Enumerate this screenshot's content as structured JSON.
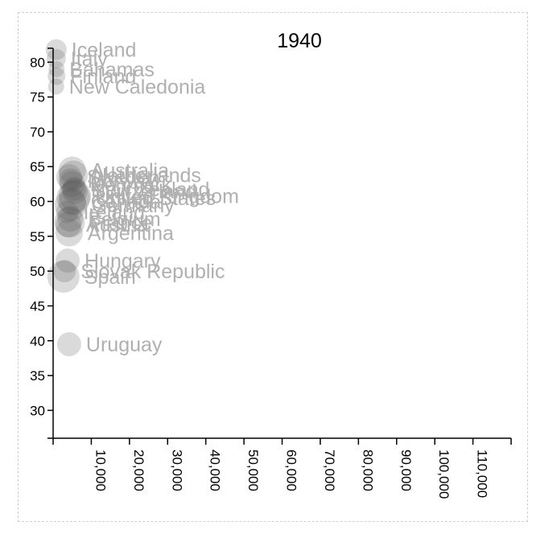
{
  "chart_data": {
    "type": "scatter",
    "title": "1940",
    "xlabel": "",
    "ylabel": "",
    "xlim": [
      0,
      120000
    ],
    "ylim": [
      26,
      82
    ],
    "x_ticks": [
      10000,
      20000,
      30000,
      40000,
      50000,
      60000,
      70000,
      80000,
      90000,
      100000,
      110000
    ],
    "x_tick_labels": [
      "10,000",
      "20,000",
      "30,000",
      "40,000",
      "50,000",
      "60,000",
      "70,000",
      "80,000",
      "90,000",
      "100,000",
      "110,000"
    ],
    "y_ticks": [
      30,
      35,
      40,
      45,
      50,
      55,
      60,
      65,
      70,
      75,
      80
    ],
    "y_tick_labels": [
      "30",
      "35",
      "40",
      "45",
      "50",
      "55",
      "60",
      "65",
      "70",
      "75",
      "80"
    ],
    "points": [
      {
        "label": "Iceland",
        "x": 800,
        "y": 81.8,
        "r": 13
      },
      {
        "label": "Italy",
        "x": 800,
        "y": 80.5,
        "r": 12
      },
      {
        "label": "Bahamas",
        "x": 900,
        "y": 79.0,
        "r": 10
      },
      {
        "label": "Finland",
        "x": 900,
        "y": 78.0,
        "r": 11
      },
      {
        "label": "New Caledonia",
        "x": 800,
        "y": 76.5,
        "r": 10
      },
      {
        "label": "Australia",
        "x": 5000,
        "y": 64.5,
        "r": 17
      },
      {
        "label": "Netherlands",
        "x": 5300,
        "y": 63.8,
        "r": 18
      },
      {
        "label": "Sweden",
        "x": 4200,
        "y": 63.5,
        "r": 16
      },
      {
        "label": "Norway",
        "x": 4600,
        "y": 63.0,
        "r": 15
      },
      {
        "label": "Denmark",
        "x": 5000,
        "y": 62.5,
        "r": 16
      },
      {
        "label": "New Zealand",
        "x": 5500,
        "y": 61.8,
        "r": 15
      },
      {
        "label": "Switzerland",
        "x": 5700,
        "y": 61.5,
        "r": 16
      },
      {
        "label": "United Kingdom",
        "x": 5700,
        "y": 60.8,
        "r": 20
      },
      {
        "label": "United States",
        "x": 5300,
        "y": 60.5,
        "r": 21
      },
      {
        "label": "Canada",
        "x": 5000,
        "y": 60.0,
        "r": 17
      },
      {
        "label": "Germany",
        "x": 4600,
        "y": 59.5,
        "r": 20
      },
      {
        "label": "Ireland",
        "x": 3700,
        "y": 58.5,
        "r": 14
      },
      {
        "label": "Belgium",
        "x": 4500,
        "y": 57.5,
        "r": 16
      },
      {
        "label": "France",
        "x": 4300,
        "y": 57.0,
        "r": 19
      },
      {
        "label": "Austria",
        "x": 4000,
        "y": 56.7,
        "r": 16
      },
      {
        "label": "Argentina",
        "x": 4200,
        "y": 55.5,
        "r": 17
      },
      {
        "label": "Hungary",
        "x": 3800,
        "y": 51.5,
        "r": 15
      },
      {
        "label": "Slovak Republic",
        "x": 3000,
        "y": 50.0,
        "r": 14
      },
      {
        "label": "Spain",
        "x": 2700,
        "y": 49.2,
        "r": 20
      },
      {
        "label": "Uruguay",
        "x": 4200,
        "y": 39.5,
        "r": 15
      }
    ]
  }
}
